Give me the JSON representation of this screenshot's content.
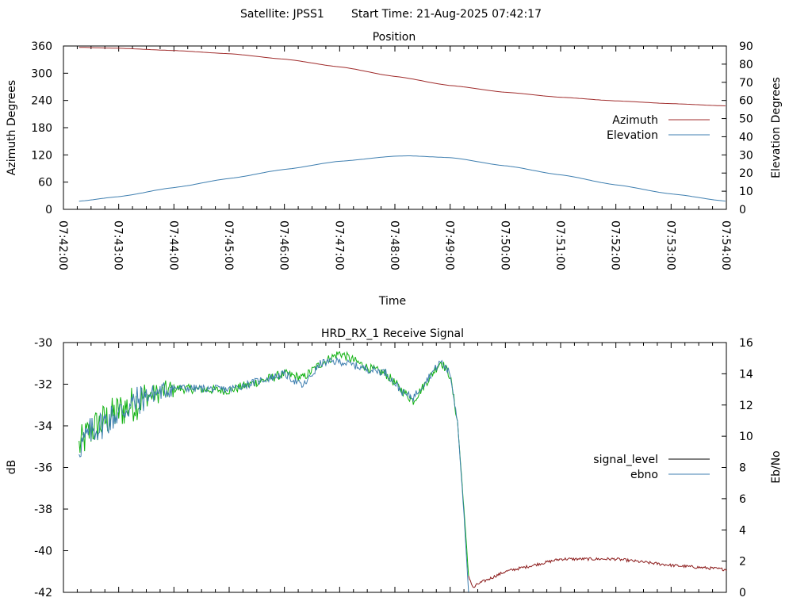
{
  "header": {
    "satellite_label": "Satellite: JPSS1",
    "start_time_label": "Start Time: 21-Aug-2025 07:42:17"
  },
  "colors": {
    "azimuth": "#a02c2c",
    "elevation": "#3f7fb0",
    "signal_level_legend": "#000000",
    "signal_low": "#8b1a1a",
    "signal_green": "#11b211",
    "ebno": "#3f7fb0"
  },
  "chart_data": [
    {
      "type": "line",
      "title": "Position",
      "xlabel": "Time",
      "ylabel": "Azimuth Degrees",
      "y2label": "Elevation Degrees",
      "xlim": [
        "07:42:00",
        "07:54:00"
      ],
      "ylim": [
        0,
        360
      ],
      "y2lim": [
        0,
        90
      ],
      "x_ticks": [
        "07:42:00",
        "07:43:00",
        "07:44:00",
        "07:45:00",
        "07:46:00",
        "07:47:00",
        "07:48:00",
        "07:49:00",
        "07:50:00",
        "07:51:00",
        "07:52:00",
        "07:53:00",
        "07:54:00"
      ],
      "y_ticks": [
        "0",
        "60",
        "120",
        "180",
        "240",
        "300",
        "360"
      ],
      "y2_ticks": [
        "0",
        "10",
        "20",
        "30",
        "40",
        "50",
        "60",
        "70",
        "80",
        "90"
      ],
      "legend_position": "right",
      "series": [
        {
          "name": "Azimuth",
          "axis": "left",
          "x": [
            "07:42:17",
            "07:43:00",
            "07:44:00",
            "07:45:00",
            "07:46:00",
            "07:47:00",
            "07:48:00",
            "07:49:00",
            "07:50:00",
            "07:51:00",
            "07:52:00",
            "07:53:00",
            "07:54:00"
          ],
          "values": [
            357,
            355,
            350,
            343,
            331,
            314,
            293,
            273,
            258,
            247,
            239,
            233,
            228
          ]
        },
        {
          "name": "Elevation",
          "axis": "right",
          "x": [
            "07:42:17",
            "07:43:00",
            "07:44:00",
            "07:45:00",
            "07:46:00",
            "07:47:00",
            "07:48:00",
            "07:48:15",
            "07:49:00",
            "07:50:00",
            "07:51:00",
            "07:52:00",
            "07:53:00",
            "07:54:00"
          ],
          "values": [
            4.5,
            7,
            12,
            17,
            22,
            26.5,
            29.3,
            29.5,
            28.5,
            24,
            19,
            13.5,
            8.5,
            4.5
          ]
        }
      ]
    },
    {
      "type": "line",
      "title": "HRD_RX_1 Receive Signal",
      "ylabel": "dB",
      "y2label": "Eb/No",
      "xlim": [
        "07:42:00",
        "07:54:00"
      ],
      "ylim": [
        -42,
        -30
      ],
      "y2lim": [
        0,
        16
      ],
      "y_ticks": [
        "-30",
        "-32",
        "-34",
        "-36",
        "-38",
        "-40",
        "-42"
      ],
      "y2_ticks": [
        "0",
        "2",
        "4",
        "6",
        "8",
        "10",
        "12",
        "14",
        "16"
      ],
      "legend_position": "right",
      "series": [
        {
          "name": "signal_level",
          "axis": "left",
          "x": [
            "07:42:17",
            "07:42:30",
            "07:43:00",
            "07:43:30",
            "07:44:00",
            "07:45:00",
            "07:46:00",
            "07:46:20",
            "07:46:40",
            "07:47:00",
            "07:47:30",
            "07:47:50",
            "07:48:10",
            "07:48:20",
            "07:48:50",
            "07:49:00",
            "07:49:08",
            "07:49:15",
            "07:49:20",
            "07:49:25",
            "07:49:30",
            "07:50:00",
            "07:51:00",
            "07:52:00",
            "07:53:00",
            "07:54:00"
          ],
          "values": [
            -35.0,
            -34.2,
            -33.3,
            -32.6,
            -32.2,
            -32.3,
            -31.5,
            -31.7,
            -31.0,
            -30.5,
            -31.2,
            -31.5,
            -32.4,
            -32.8,
            -30.9,
            -31.6,
            -33.8,
            -38.0,
            -41.2,
            -41.8,
            -41.6,
            -41.0,
            -40.4,
            -40.4,
            -40.7,
            -40.9
          ]
        },
        {
          "name": "ebno",
          "axis": "right",
          "x": [
            "07:42:17",
            "07:42:30",
            "07:43:00",
            "07:43:30",
            "07:44:00",
            "07:45:00",
            "07:46:00",
            "07:46:20",
            "07:46:40",
            "07:47:00",
            "07:47:30",
            "07:47:50",
            "07:48:10",
            "07:48:20",
            "07:48:50",
            "07:49:00",
            "07:49:08",
            "07:49:15",
            "07:49:20"
          ],
          "values": [
            9.3,
            10.3,
            11.5,
            12.6,
            13.1,
            13.0,
            14.0,
            13.2,
            14.7,
            14.8,
            14.3,
            14.1,
            12.7,
            12.5,
            14.8,
            14.0,
            11.0,
            5.0,
            0
          ]
        }
      ]
    }
  ]
}
